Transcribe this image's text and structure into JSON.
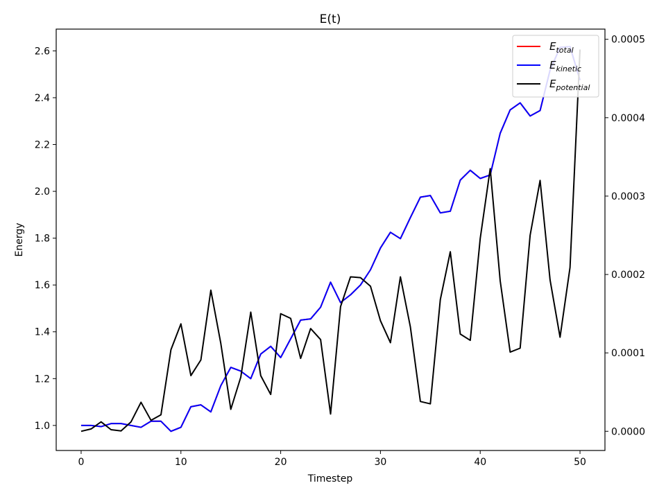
{
  "chart_data": {
    "type": "line",
    "title": "E(t)",
    "xlabel": "Timestep",
    "ylabel": "Energy",
    "xlim": [
      -2.5,
      52.5
    ],
    "ylim": [
      0.893,
      2.693
    ],
    "y2lim": [
      -2.45e-05,
      0.000513
    ],
    "xticks": [
      0,
      10,
      20,
      30,
      40,
      50
    ],
    "xtick_labels": [
      "0",
      "10",
      "20",
      "30",
      "40",
      "50"
    ],
    "yticks": [
      1.0,
      1.2,
      1.4,
      1.6,
      1.8,
      2.0,
      2.2,
      2.4,
      2.6
    ],
    "ytick_labels": [
      "1.0",
      "1.2",
      "1.4",
      "1.6",
      "1.8",
      "2.0",
      "2.2",
      "2.4",
      "2.6"
    ],
    "y2ticks": [
      0,
      0.0001,
      0.0002,
      0.0003,
      0.0004,
      0.0005
    ],
    "y2tick_labels": [
      "0.0000",
      "0.0001",
      "0.0002",
      "0.0003",
      "0.0004",
      "0.0005"
    ],
    "grid": false,
    "legend_position": "top-right",
    "x": [
      0,
      1,
      2,
      3,
      4,
      5,
      6,
      7,
      8,
      9,
      10,
      11,
      12,
      13,
      14,
      15,
      16,
      17,
      18,
      19,
      20,
      21,
      22,
      23,
      24,
      25,
      26,
      27,
      28,
      29,
      30,
      31,
      32,
      33,
      34,
      35,
      36,
      37,
      38,
      39,
      40,
      41,
      42,
      43,
      44,
      45,
      46,
      47,
      48,
      49,
      50
    ],
    "series": [
      {
        "name": "E_total",
        "label_main": "E",
        "label_sub": "total",
        "color": "#ff0000",
        "axis": "left",
        "values": [
          1.0,
          1.0,
          0.995,
          1.008,
          1.008,
          1.0,
          0.992,
          1.018,
          1.018,
          0.975,
          0.992,
          1.08,
          1.088,
          1.058,
          1.17,
          1.248,
          1.232,
          1.2,
          1.305,
          1.338,
          1.29,
          1.37,
          1.45,
          1.455,
          1.505,
          1.612,
          1.525,
          1.558,
          1.6,
          1.665,
          1.758,
          1.825,
          1.798,
          1.888,
          1.975,
          1.982,
          1.908,
          1.915,
          2.048,
          2.09,
          2.055,
          2.07,
          2.248,
          2.348,
          2.378,
          2.322,
          2.345,
          2.518,
          2.615,
          2.618,
          2.475
        ]
      },
      {
        "name": "E_kinetic",
        "label_main": "E",
        "label_sub": "kinetic",
        "color": "#0000ff",
        "axis": "left",
        "values": [
          1.0,
          1.0,
          0.995,
          1.008,
          1.008,
          1.0,
          0.992,
          1.018,
          1.018,
          0.975,
          0.992,
          1.08,
          1.088,
          1.058,
          1.17,
          1.248,
          1.232,
          1.2,
          1.305,
          1.338,
          1.29,
          1.37,
          1.45,
          1.455,
          1.505,
          1.612,
          1.525,
          1.558,
          1.6,
          1.665,
          1.758,
          1.825,
          1.798,
          1.888,
          1.975,
          1.982,
          1.908,
          1.915,
          2.048,
          2.09,
          2.055,
          2.07,
          2.248,
          2.348,
          2.378,
          2.322,
          2.345,
          2.518,
          2.615,
          2.618,
          2.475
        ]
      },
      {
        "name": "E_potential",
        "label_main": "E",
        "label_sub": "potential",
        "color": "#000000",
        "axis": "right",
        "values": [
          0.0,
          3e-06,
          1.2e-05,
          2e-06,
          5e-07,
          1.2e-05,
          3.7e-05,
          1.4e-05,
          2.1e-05,
          0.000104,
          0.000137,
          7.1e-05,
          9.1e-05,
          0.00018,
          0.000112,
          2.8e-05,
          6.9e-05,
          0.000152,
          7.1e-05,
          4.7e-05,
          0.00015,
          0.000144,
          9.3e-05,
          0.000131,
          0.000117,
          2.2e-05,
          0.000159,
          0.000197,
          0.000196,
          0.000185,
          0.000141,
          0.000113,
          0.000197,
          0.000133,
          3.8e-05,
          3.5e-05,
          0.000168,
          0.000229,
          0.000124,
          0.000116,
          0.000246,
          0.000335,
          0.000192,
          0.000101,
          0.000106,
          0.00025,
          0.00032,
          0.000193,
          0.00012,
          0.000209,
          0.000487
        ]
      }
    ]
  }
}
